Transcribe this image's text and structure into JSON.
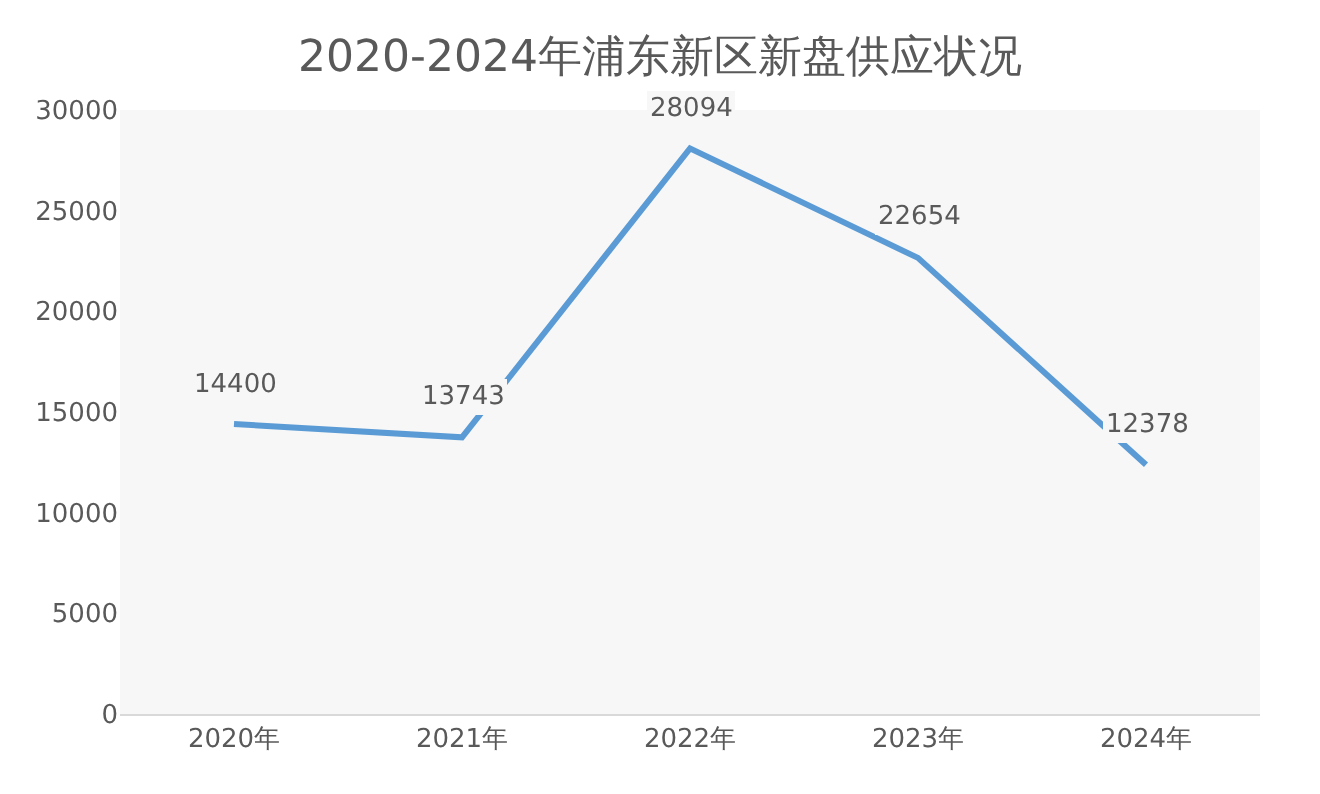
{
  "chart_data": {
    "type": "line",
    "title": "2020-2024年浦东新区新盘供应状况",
    "categories": [
      "2020年",
      "2021年",
      "2022年",
      "2023年",
      "2024年"
    ],
    "values": [
      14400,
      13743,
      28094,
      22654,
      12378
    ],
    "color": "#5b9bd5",
    "ylim": [
      0,
      30000
    ],
    "yticks": [
      0,
      5000,
      10000,
      15000,
      20000,
      25000,
      30000
    ],
    "grid": false,
    "legend": false,
    "marker": "none",
    "line_style": "solid",
    "data_labels": true
  }
}
